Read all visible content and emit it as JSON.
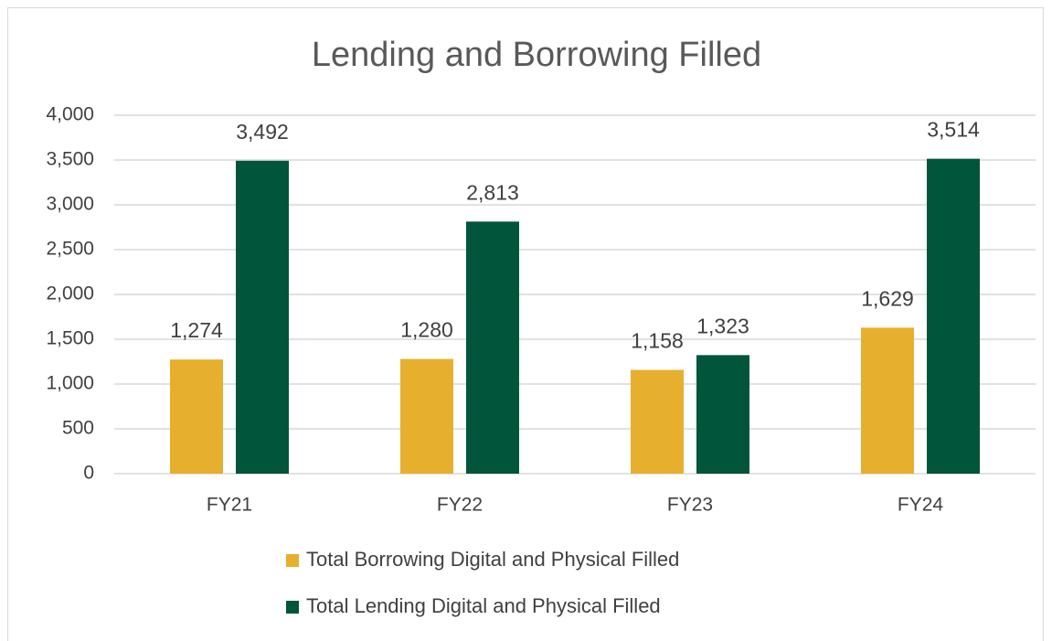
{
  "chart_data": {
    "type": "bar",
    "title": "Lending and Borrowing Filled",
    "categories": [
      "FY21",
      "FY22",
      "FY23",
      "FY24"
    ],
    "series": [
      {
        "name": "Total Borrowing Digital and Physical Filled",
        "color": "#e6b02e",
        "values": [
          1274,
          1280,
          1158,
          1629
        ],
        "value_labels": [
          "1,274",
          "1,280",
          "1,158",
          "1,629"
        ]
      },
      {
        "name": "Total Lending Digital and Physical Filled",
        "color": "#00553a",
        "values": [
          3492,
          2813,
          1323,
          3514
        ],
        "value_labels": [
          "3,492",
          "2,813",
          "1,323",
          "3,514"
        ]
      }
    ],
    "ylim": [
      0,
      4000
    ],
    "yticks": [
      0,
      500,
      {
        "value": 1000,
        "label": "1,000"
      },
      {
        "value": 1500,
        "label": "1,500"
      },
      {
        "value": 2000,
        "label": "2,000"
      },
      {
        "value": 2500,
        "label": "2,500"
      },
      {
        "value": 3000,
        "label": "3,000"
      },
      {
        "value": 3500,
        "label": "3,500"
      },
      {
        "value": 4000,
        "label": "4,000"
      }
    ],
    "grid": true,
    "legend": "bottom"
  }
}
